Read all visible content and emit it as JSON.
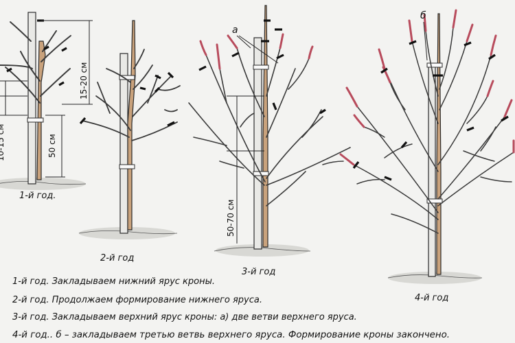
{
  "trees": [
    {
      "caption": "1-й год.",
      "measures": [
        "15-20 см",
        "10-15 см",
        "50 см"
      ]
    },
    {
      "caption": "2-й год"
    },
    {
      "caption": "3-й год",
      "marker": "а",
      "measures": [
        "50-70 см"
      ]
    },
    {
      "caption": "4-й год",
      "marker": "б"
    }
  ],
  "legend": [
    "1-й год. Закладываем нижний ярус кроны.",
    "2-й год. Продолжаем формирование нижнего яруса.",
    "3-й год. Закладываем верхний ярус кроны: а) две ветви верхнего яруса.",
    "4-й год.. б – закладываем третью ветвь верхнего яруса. Формирование кроны закончено."
  ],
  "colors": {
    "trunk": "#c9a27c",
    "shoot": "#b84b5c",
    "line": "#3a3a3a"
  }
}
